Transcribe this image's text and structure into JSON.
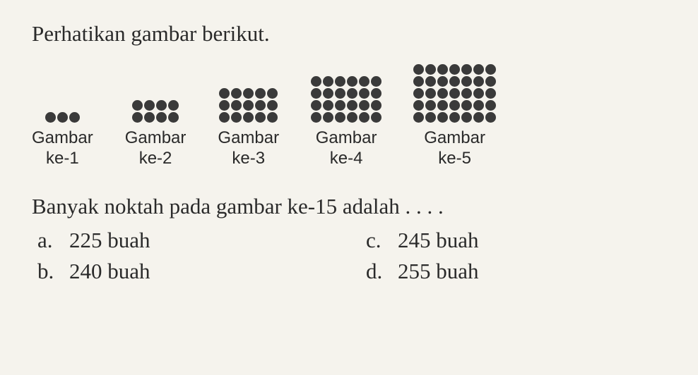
{
  "title": "Perhatikan gambar berikut.",
  "dot_color": "#3a3a3a",
  "background_color": "#f5f3ed",
  "patterns": [
    {
      "rows": 1,
      "cols": 3,
      "dot_size": 15,
      "label_line1": "Gambar",
      "label_line2": "ke-1"
    },
    {
      "rows": 2,
      "cols": 4,
      "dot_size": 15,
      "label_line1": "Gambar",
      "label_line2": "ke-2"
    },
    {
      "rows": 3,
      "cols": 5,
      "dot_size": 15,
      "label_line1": "Gambar",
      "label_line2": "ke-3"
    },
    {
      "rows": 4,
      "cols": 6,
      "dot_size": 15,
      "label_line1": "Gambar",
      "label_line2": "ke-4"
    },
    {
      "rows": 5,
      "cols": 7,
      "dot_size": 15,
      "label_line1": "Gambar",
      "label_line2": "ke-5"
    }
  ],
  "question": "Banyak noktah pada gambar ke-15 adalah . . . .",
  "answers": {
    "a": {
      "letter": "a.",
      "text": "225 buah"
    },
    "b": {
      "letter": "b.",
      "text": "240 buah"
    },
    "c": {
      "letter": "c.",
      "text": "245 buah"
    },
    "d": {
      "letter": "d.",
      "text": "255 buah"
    }
  }
}
